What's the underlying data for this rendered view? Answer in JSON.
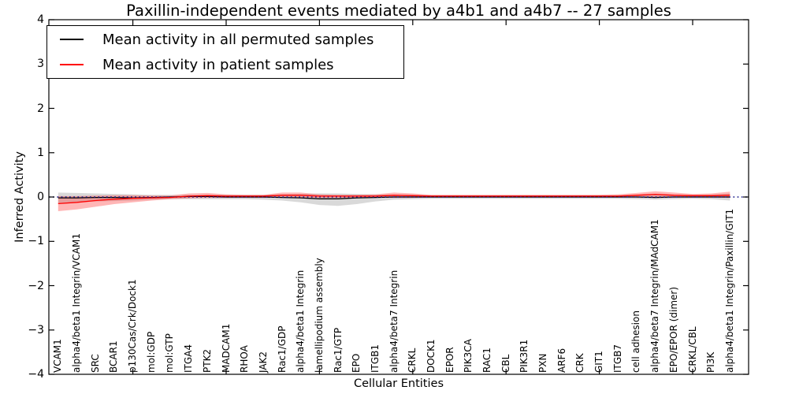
{
  "figure": {
    "title": "Paxillin-independent events mediated by a4b1 and a4b7 -- 27 samples",
    "xlabel": "Cellular Entities",
    "ylabel": "Inferred Activity"
  },
  "legend": {
    "items": [
      {
        "label": "Mean activity in all permuted samples",
        "color": "#000000"
      },
      {
        "label": "Mean activity in patient samples",
        "color": "#ff0000"
      }
    ]
  },
  "chart_data": {
    "type": "line",
    "title": "Paxillin-independent events mediated by a4b1 and a4b7 -- 27 samples",
    "xlabel": "Cellular Entities",
    "ylabel": "Inferred Activity",
    "ylim": [
      -4,
      4
    ],
    "xlim": [
      -0.5,
      37.0
    ],
    "grid": false,
    "legend_position": "upper left",
    "y_ticks": [
      4,
      3,
      2,
      1,
      0,
      -1,
      -2,
      -3,
      -4
    ],
    "y_tick_labels": [
      "4",
      "3",
      "2",
      "1",
      "0",
      "−1",
      "−2",
      "−3",
      "−4"
    ],
    "x_major_tick_indices": [
      4,
      9,
      14,
      19,
      24,
      29,
      34
    ],
    "categories": [
      "VCAM1",
      "alpha4/beta1 Integrin/VCAM1",
      "SRC",
      "BCAR1",
      "p130Cas/Crk/Dock1",
      "mol:GDP",
      "mol:GTP",
      "ITGA4",
      "PTK2",
      "MADCAM1",
      "RHOA",
      "JAK2",
      "Rac1/GDP",
      "alpha4/beta1 Integrin",
      "lamellipodium assembly",
      "Rac1/GTP",
      "EPO",
      "ITGB1",
      "alpha4/beta7 Integrin",
      "CRKL",
      "DOCK1",
      "EPOR",
      "PIK3CA",
      "RAC1",
      "CBL",
      "PIK3R1",
      "PXN",
      "ARF6",
      "CRK",
      "GIT1",
      "ITGB7",
      "cell adhesion",
      "alpha4/beta7 Integrin/MAdCAM1",
      "EPO/EPOR (dimer)",
      "CRKL/CBL",
      "PI3K",
      "alpha4/beta1 Integrin/Paxillin/GIT1"
    ],
    "series": [
      {
        "name": "permuted-std-band",
        "kind": "band",
        "color": "#9a9a9a",
        "opacity": 0.38,
        "upper": [
          0.1,
          0.09,
          0.08,
          0.07,
          0.06,
          0.05,
          0.05,
          0.05,
          0.05,
          0.05,
          0.05,
          0.05,
          0.06,
          0.07,
          0.08,
          0.08,
          0.07,
          0.06,
          0.05,
          0.05,
          0.04,
          0.04,
          0.04,
          0.04,
          0.04,
          0.04,
          0.04,
          0.04,
          0.04,
          0.04,
          0.04,
          0.05,
          0.06,
          0.05,
          0.04,
          0.05,
          0.08
        ],
        "lower": [
          -0.14,
          -0.12,
          -0.1,
          -0.09,
          -0.08,
          -0.06,
          -0.05,
          -0.05,
          -0.05,
          -0.05,
          -0.05,
          -0.06,
          -0.08,
          -0.12,
          -0.18,
          -0.2,
          -0.16,
          -0.1,
          -0.06,
          -0.05,
          -0.04,
          -0.04,
          -0.04,
          -0.04,
          -0.04,
          -0.04,
          -0.04,
          -0.04,
          -0.04,
          -0.04,
          -0.04,
          -0.05,
          -0.06,
          -0.05,
          -0.04,
          -0.05,
          -0.08
        ]
      },
      {
        "name": "patient-std-band",
        "kind": "band",
        "color": "#ff2a2a",
        "opacity": 0.34,
        "upper": [
          0.02,
          0.02,
          0.03,
          0.04,
          0.04,
          0.03,
          0.03,
          0.08,
          0.09,
          0.06,
          0.05,
          0.05,
          0.1,
          0.1,
          0.06,
          0.05,
          0.05,
          0.06,
          0.1,
          0.08,
          0.05,
          0.05,
          0.05,
          0.05,
          0.05,
          0.05,
          0.05,
          0.05,
          0.05,
          0.05,
          0.06,
          0.09,
          0.13,
          0.1,
          0.07,
          0.08,
          0.12
        ],
        "lower": [
          -0.32,
          -0.28,
          -0.22,
          -0.16,
          -0.12,
          -0.08,
          -0.05,
          -0.03,
          -0.02,
          -0.02,
          -0.02,
          -0.02,
          -0.01,
          -0.01,
          -0.02,
          -0.02,
          -0.02,
          -0.01,
          -0.02,
          -0.02,
          -0.01,
          -0.01,
          -0.01,
          -0.01,
          -0.01,
          -0.01,
          -0.01,
          -0.01,
          -0.01,
          -0.01,
          -0.01,
          -0.01,
          0.0,
          -0.01,
          -0.01,
          -0.01,
          -0.02
        ]
      },
      {
        "name": "Mean activity in all permuted samples",
        "kind": "line",
        "color": "#000000",
        "width": 1.3,
        "values": [
          -0.02,
          -0.02,
          -0.01,
          -0.01,
          -0.02,
          -0.01,
          0.0,
          0.01,
          0.01,
          0.0,
          0.0,
          0.0,
          -0.01,
          -0.02,
          -0.04,
          -0.04,
          -0.02,
          -0.01,
          0.0,
          0.0,
          0.0,
          0.0,
          0.0,
          0.0,
          0.0,
          0.0,
          0.0,
          0.0,
          0.0,
          0.0,
          0.0,
          0.0,
          -0.01,
          0.0,
          0.0,
          0.0,
          0.0
        ]
      },
      {
        "name": "zero-reference",
        "kind": "hline",
        "y": 0,
        "color": "#20208c",
        "width": 1.4,
        "dash": "1.8 3.4"
      },
      {
        "name": "Mean activity in patient samples",
        "kind": "line",
        "color": "#ff0000",
        "width": 1.3,
        "values": [
          -0.15,
          -0.12,
          -0.08,
          -0.05,
          -0.03,
          -0.02,
          -0.01,
          0.02,
          0.03,
          0.02,
          0.02,
          0.02,
          0.04,
          0.04,
          0.02,
          0.02,
          0.02,
          0.02,
          0.04,
          0.03,
          0.02,
          0.02,
          0.02,
          0.02,
          0.02,
          0.02,
          0.02,
          0.02,
          0.02,
          0.02,
          0.02,
          0.04,
          0.06,
          0.04,
          0.03,
          0.03,
          0.04
        ]
      }
    ]
  }
}
